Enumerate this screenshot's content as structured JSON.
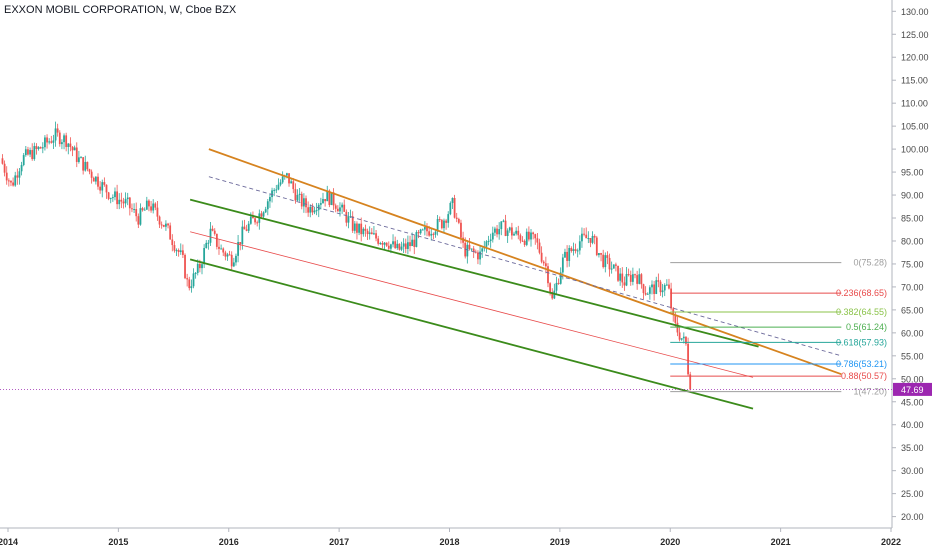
{
  "chart_data": {
    "type": "candlestick",
    "title": "EXXON MOBIL CORPORATION, W, Cboe BZX",
    "colors": {
      "up": "#26a69a",
      "down": "#ef5350",
      "channel_upper": "#d6831f",
      "channel_lower": "#3b8b1b",
      "fib_red": "#e84b4b",
      "current_price": "#9c27b0"
    },
    "y_axis": {
      "min": 20,
      "max": 130,
      "ticks": [
        "20.00",
        "25.00",
        "30.00",
        "35.00",
        "40.00",
        "45.00",
        "50.00",
        "55.00",
        "60.00",
        "65.00",
        "70.00",
        "75.00",
        "80.00",
        "85.00",
        "90.00",
        "95.00",
        "100.00",
        "105.00",
        "110.00",
        "115.00",
        "120.00",
        "125.00",
        "130.00"
      ]
    },
    "x_axis": {
      "ticks": [
        "2014",
        "2015",
        "2016",
        "2017",
        "2018",
        "2019",
        "2020",
        "2021",
        "2022"
      ]
    },
    "current_price": {
      "label": "47.69",
      "value": 47.69
    },
    "price_path": [
      [
        2013.95,
        98
      ],
      [
        2014.05,
        92
      ],
      [
        2014.15,
        98
      ],
      [
        2014.3,
        100
      ],
      [
        2014.45,
        103
      ],
      [
        2014.55,
        102
      ],
      [
        2014.65,
        98
      ],
      [
        2014.8,
        94
      ],
      [
        2014.95,
        90
      ],
      [
        2015.1,
        88
      ],
      [
        2015.2,
        85
      ],
      [
        2015.3,
        88
      ],
      [
        2015.45,
        83
      ],
      [
        2015.6,
        76
      ],
      [
        2015.65,
        70
      ],
      [
        2015.75,
        74
      ],
      [
        2015.85,
        82
      ],
      [
        2015.95,
        78
      ],
      [
        2016.05,
        76
      ],
      [
        2016.15,
        82
      ],
      [
        2016.3,
        86
      ],
      [
        2016.45,
        92
      ],
      [
        2016.55,
        94
      ],
      [
        2016.65,
        89
      ],
      [
        2016.75,
        87
      ],
      [
        2016.9,
        90
      ],
      [
        2017.0,
        88
      ],
      [
        2017.15,
        83
      ],
      [
        2017.3,
        81
      ],
      [
        2017.45,
        80
      ],
      [
        2017.55,
        78
      ],
      [
        2017.65,
        79
      ],
      [
        2017.8,
        82
      ],
      [
        2017.95,
        84
      ],
      [
        2018.05,
        88
      ],
      [
        2018.15,
        78
      ],
      [
        2018.3,
        77
      ],
      [
        2018.4,
        82
      ],
      [
        2018.5,
        83
      ],
      [
        2018.65,
        81
      ],
      [
        2018.8,
        80
      ],
      [
        2018.9,
        74
      ],
      [
        2018.95,
        67
      ],
      [
        2019.05,
        76
      ],
      [
        2019.2,
        80
      ],
      [
        2019.3,
        81
      ],
      [
        2019.4,
        76
      ],
      [
        2019.5,
        74
      ],
      [
        2019.6,
        71
      ],
      [
        2019.7,
        73
      ],
      [
        2019.8,
        69
      ],
      [
        2019.9,
        70
      ],
      [
        2020.0,
        70
      ],
      [
        2020.05,
        62
      ],
      [
        2020.12,
        59
      ],
      [
        2020.17,
        57
      ],
      [
        2020.19,
        47.7
      ]
    ],
    "annotations": {
      "channel": [
        {
          "name": "upper-trend",
          "color": "#d6831f",
          "from": [
            2015.82,
            100
          ],
          "to": [
            2021.55,
            51
          ]
        },
        {
          "name": "mid-trend",
          "color": "#3b8b1b",
          "from": [
            2015.65,
            89
          ],
          "to": [
            2020.8,
            57
          ]
        },
        {
          "name": "lower-trend",
          "color": "#3b8b1b",
          "from": [
            2015.65,
            76
          ],
          "to": [
            2020.75,
            43.5
          ]
        },
        {
          "name": "median-dashed",
          "color": "#6c6a9b",
          "from": [
            2015.82,
            94
          ],
          "to": [
            2021.55,
            55
          ],
          "dashed": true
        },
        {
          "name": "red-mid",
          "color": "#e84b4b",
          "from": [
            2015.65,
            82
          ],
          "to": [
            2020.75,
            50.3
          ]
        }
      ],
      "fib_start": 2020.0,
      "fib_end": 2021.55,
      "fib_levels": [
        {
          "label": "0(75.28)",
          "value": 75.28,
          "color": "#9e9e9e"
        },
        {
          "label": "0.236(68.65)",
          "value": 68.65,
          "color": "#e84b4b"
        },
        {
          "label": "0.382(64.55)",
          "value": 64.55,
          "color": "#8bc34a"
        },
        {
          "label": "0.5(61.24)",
          "value": 61.24,
          "color": "#4caf50"
        },
        {
          "label": "0.618(57.93)",
          "value": 57.93,
          "color": "#26a69a"
        },
        {
          "label": "0.786(53.21)",
          "value": 53.21,
          "color": "#2196f3"
        },
        {
          "label": "0.88(50.57)",
          "value": 50.57,
          "color": "#e84b4b"
        },
        {
          "label": "1(47.20)",
          "value": 47.2,
          "color": "#9e9e9e"
        }
      ]
    }
  }
}
